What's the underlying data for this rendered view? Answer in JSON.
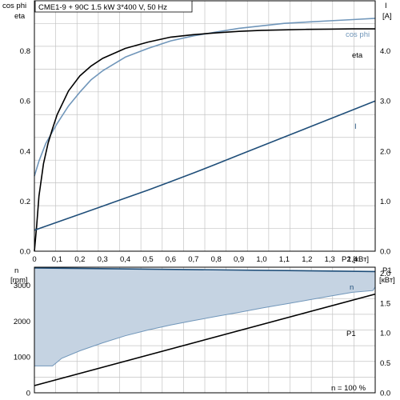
{
  "chart_data": [
    {
      "type": "line",
      "title": "CME1-9 + 90C   1.5 kW   3*400 V, 50 Hz",
      "xlabel": "P2 [кВт]",
      "ylabel_left_line1": "cos phi",
      "ylabel_left_line2": "eta",
      "ylabel_right_line1": "I",
      "ylabel_right_line2": "[A]",
      "xlim": [
        0,
        1.5
      ],
      "ylim_left": [
        0,
        1.0
      ],
      "ylim_right": [
        0,
        5.0
      ],
      "x_ticks": [
        "0",
        "0,1",
        "0,2",
        "0,3",
        "0,4",
        "0,5",
        "0,6",
        "0,7",
        "0,8",
        "0,9",
        "1,0",
        "1,1",
        "1,2",
        "1,3",
        "1,4"
      ],
      "x_tick_values": [
        0,
        0.1,
        0.2,
        0.3,
        0.4,
        0.5,
        0.6,
        0.7,
        0.8,
        0.9,
        1.0,
        1.1,
        1.2,
        1.3,
        1.4
      ],
      "y_ticks_left": [
        "0.0",
        "0.2",
        "0.4",
        "0.6",
        "0.8"
      ],
      "y_tick_values_left": [
        0,
        0.2,
        0.4,
        0.6,
        0.8
      ],
      "y_ticks_right": [
        "0.0",
        "1.0",
        "2.0",
        "3.0",
        "4.0"
      ],
      "y_tick_values_right": [
        0,
        1,
        2,
        3,
        4
      ],
      "grid": true,
      "series": [
        {
          "name": "cos phi",
          "axis": "left",
          "color": "#7096ba",
          "x": [
            0,
            0.02,
            0.05,
            0.1,
            0.15,
            0.2,
            0.25,
            0.3,
            0.4,
            0.5,
            0.6,
            0.7,
            0.8,
            0.9,
            1.0,
            1.1,
            1.2,
            1.3,
            1.4,
            1.5
          ],
          "y": [
            0.3,
            0.36,
            0.43,
            0.51,
            0.58,
            0.635,
            0.685,
            0.72,
            0.775,
            0.81,
            0.84,
            0.86,
            0.875,
            0.89,
            0.9,
            0.91,
            0.915,
            0.92,
            0.925,
            0.93
          ]
        },
        {
          "name": "eta",
          "axis": "left",
          "color": "#000000",
          "x": [
            0,
            0.01,
            0.02,
            0.04,
            0.06,
            0.08,
            0.1,
            0.15,
            0.2,
            0.25,
            0.3,
            0.4,
            0.5,
            0.6,
            0.7,
            0.8,
            0.9,
            1.0,
            1.1,
            1.2,
            1.3,
            1.4,
            1.5
          ],
          "y": [
            0.0,
            0.1,
            0.22,
            0.35,
            0.43,
            0.49,
            0.545,
            0.64,
            0.7,
            0.74,
            0.77,
            0.81,
            0.835,
            0.855,
            0.865,
            0.872,
            0.878,
            0.882,
            0.884,
            0.886,
            0.887,
            0.888,
            0.888
          ]
        },
        {
          "name": "I",
          "axis": "right",
          "color": "#1f4e79",
          "x": [
            0,
            0.1,
            0.2,
            0.3,
            0.4,
            0.5,
            0.6,
            0.7,
            0.8,
            0.9,
            1.0,
            1.1,
            1.2,
            1.3,
            1.4,
            1.5
          ],
          "y": [
            0.42,
            0.58,
            0.74,
            0.9,
            1.06,
            1.22,
            1.39,
            1.56,
            1.74,
            1.92,
            2.1,
            2.28,
            2.46,
            2.64,
            2.82,
            3.0
          ]
        }
      ]
    },
    {
      "type": "area",
      "xlim": [
        0,
        1.5
      ],
      "ylabel_left_line1": "n",
      "ylabel_left_line2": "[rpm]",
      "ylabel_right_line1": "P1",
      "ylabel_right_line2": "[кВт]",
      "ylim_left": [
        0,
        3500
      ],
      "ylim_right": [
        0,
        2.1
      ],
      "y_ticks_left": [
        "0",
        "1000",
        "2000",
        "3000"
      ],
      "y_tick_values_left": [
        0,
        1000,
        2000,
        3000
      ],
      "y_ticks_right": [
        "0.0",
        "0.5",
        "1.0",
        "1.5",
        "2.0"
      ],
      "y_tick_values_right": [
        0,
        0.5,
        1.0,
        1.5,
        2.0
      ],
      "grid": true,
      "annotation": "n = 100 %",
      "series": [
        {
          "name": "n",
          "axis": "left",
          "color": "#1f4e79",
          "x": [
            0,
            1.5
          ],
          "y": [
            3480,
            3380
          ]
        },
        {
          "name": "",
          "axis": "left",
          "color": "#c5d3e2",
          "x": [
            0,
            0.08,
            0.12,
            0.2,
            0.3,
            0.4,
            0.5,
            0.6,
            0.7,
            0.8,
            0.9,
            1.0,
            1.1,
            1.2,
            1.3,
            1.4,
            1.49,
            1.5
          ],
          "y": [
            750,
            750,
            960,
            1170,
            1390,
            1590,
            1750,
            1890,
            2010,
            2130,
            2240,
            2360,
            2470,
            2580,
            2690,
            2800,
            2850,
            2950
          ]
        },
        {
          "name": "P1",
          "axis": "right",
          "color": "#000000",
          "x": [
            0,
            1.5
          ],
          "y": [
            0.12,
            1.65
          ]
        }
      ]
    }
  ]
}
